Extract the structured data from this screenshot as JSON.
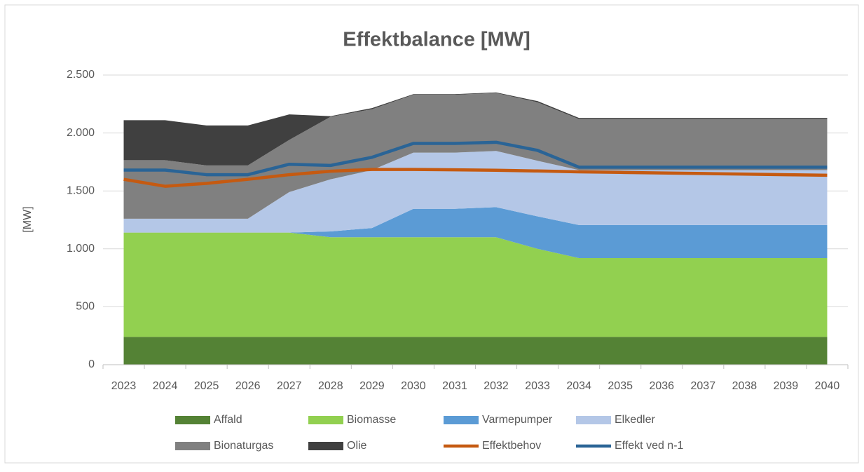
{
  "chart_data": {
    "type": "stacked_area_line",
    "title": "Effektbalance [MW]",
    "y_label": "[MW]",
    "categories": [
      "2023",
      "2024",
      "2025",
      "2026",
      "2027",
      "2028",
      "2029",
      "2030",
      "2031",
      "2032",
      "2033",
      "2034",
      "2035",
      "2036",
      "2037",
      "2038",
      "2039",
      "2040"
    ],
    "ylim": [
      0,
      2500
    ],
    "yticks": [
      0,
      500,
      {
        "value": 1000,
        "label": "1.000"
      },
      {
        "value": 1500,
        "label": "1.500"
      },
      {
        "value": 2000,
        "label": "2.000"
      },
      {
        "value": 2500,
        "label": "2.500"
      }
    ],
    "grid": true,
    "legend": "bottom",
    "series": [
      {
        "name": "Affald",
        "kind": "area",
        "color": "#548235",
        "values": [
          240,
          240,
          240,
          240,
          240,
          240,
          240,
          240,
          240,
          240,
          240,
          240,
          240,
          240,
          240,
          240,
          240,
          240
        ]
      },
      {
        "name": "Biomasse",
        "kind": "area",
        "color": "#92d050",
        "values": [
          900,
          900,
          900,
          900,
          900,
          860,
          860,
          860,
          860,
          860,
          760,
          680,
          680,
          680,
          680,
          680,
          680,
          680
        ]
      },
      {
        "name": "Varmepumper",
        "kind": "area",
        "color": "#5b9bd5",
        "values": [
          0,
          0,
          0,
          0,
          0,
          50,
          80,
          245,
          245,
          260,
          280,
          285,
          285,
          285,
          285,
          285,
          285,
          285
        ]
      },
      {
        "name": "Elkedler",
        "kind": "area",
        "color": "#b4c7e7",
        "values": [
          120,
          120,
          120,
          120,
          350,
          450,
          500,
          485,
          485,
          485,
          480,
          475,
          475,
          475,
          475,
          475,
          475,
          475
        ]
      },
      {
        "name": "Bionaturgas",
        "kind": "area",
        "color": "#808080",
        "values": [
          505,
          505,
          460,
          460,
          450,
          540,
          525,
          500,
          500,
          500,
          505,
          440,
          440,
          440,
          440,
          440,
          440,
          440
        ]
      },
      {
        "name": "Olie",
        "kind": "area",
        "color": "#404040",
        "values": [
          345,
          345,
          345,
          345,
          220,
          5,
          10,
          5,
          5,
          5,
          10,
          10,
          10,
          10,
          10,
          10,
          10,
          10
        ]
      },
      {
        "name": "Effektbehov",
        "kind": "line",
        "color": "#c55a11",
        "values": [
          1600,
          1540,
          1565,
          1600,
          1640,
          1670,
          1685,
          1685,
          1682,
          1678,
          1672,
          1665,
          1660,
          1655,
          1650,
          1645,
          1640,
          1635
        ]
      },
      {
        "name": "Effekt ved n-1",
        "kind": "line",
        "color": "#2a6496",
        "values": [
          1680,
          1680,
          1640,
          1640,
          1730,
          1720,
          1790,
          1910,
          1910,
          1920,
          1850,
          1705,
          1705,
          1705,
          1705,
          1705,
          1705,
          1705
        ]
      }
    ]
  }
}
